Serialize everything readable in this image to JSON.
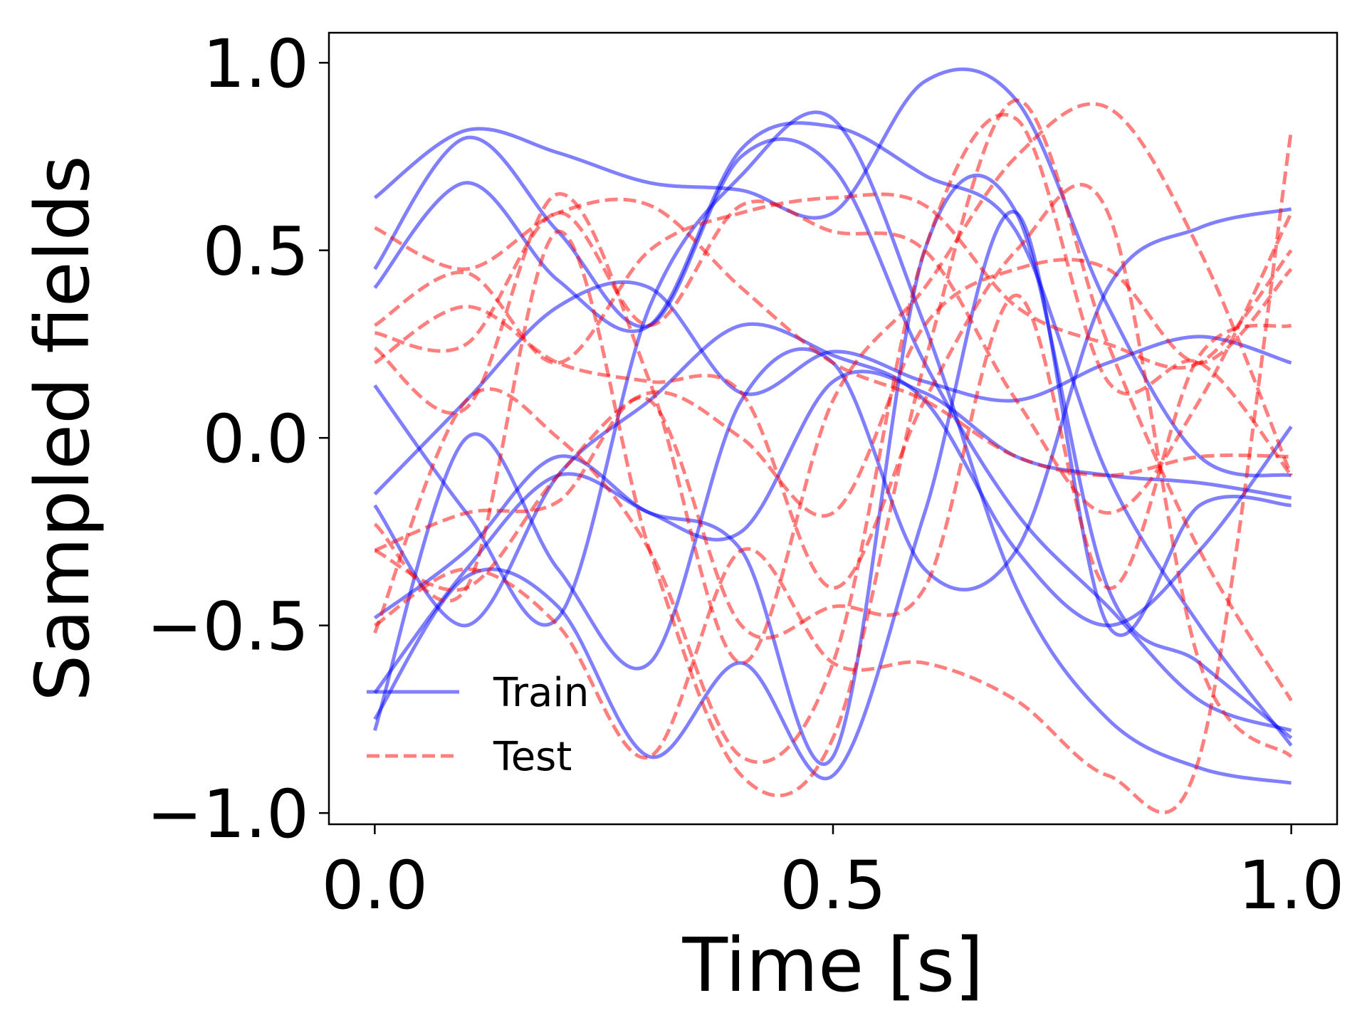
{
  "chart_data": {
    "type": "line",
    "title": "",
    "xlabel": "Time [s]",
    "ylabel": "Sampled fields",
    "xlim": [
      -0.05,
      1.05
    ],
    "ylim": [
      -1.03,
      1.08
    ],
    "x_ticks": [
      {
        "value": 0.0,
        "label": "0.0"
      },
      {
        "value": 0.5,
        "label": "0.5"
      },
      {
        "value": 1.0,
        "label": "1.0"
      }
    ],
    "y_ticks": [
      {
        "value": -1.0,
        "label": "−1.0"
      },
      {
        "value": -0.5,
        "label": "−0.5"
      },
      {
        "value": 0.0,
        "label": "0.0"
      },
      {
        "value": 0.5,
        "label": "0.5"
      },
      {
        "value": 1.0,
        "label": "1.0"
      }
    ],
    "grid": false,
    "legend": {
      "placement": "lower-left",
      "entries": [
        {
          "label": "Train",
          "style": "solid",
          "color": "#0000ff"
        },
        {
          "label": "Test",
          "style": "dashed",
          "color": "#ff0000"
        }
      ]
    },
    "line_opacity": 0.5,
    "x": [
      0.0,
      0.1,
      0.2,
      0.3,
      0.4,
      0.5,
      0.6,
      0.7,
      0.8,
      0.9,
      1.0
    ],
    "series": [
      {
        "group": "Train",
        "values": [
          0.64,
          0.82,
          0.76,
          0.68,
          0.66,
          0.6,
          0.95,
          0.9,
          0.35,
          -0.05,
          -0.1
        ]
      },
      {
        "group": "Train",
        "values": [
          0.45,
          0.8,
          0.55,
          0.3,
          0.75,
          0.72,
          0.2,
          -0.2,
          -0.45,
          -0.7,
          -0.78
        ]
      },
      {
        "group": "Train",
        "values": [
          0.4,
          0.68,
          0.42,
          0.3,
          0.77,
          0.83,
          0.7,
          0.55,
          -0.1,
          -0.5,
          -0.82
        ]
      },
      {
        "group": "Train",
        "values": [
          0.14,
          -0.2,
          -0.48,
          0.35,
          0.7,
          0.85,
          0.3,
          -0.4,
          -0.75,
          -0.88,
          -0.92
        ]
      },
      {
        "group": "Train",
        "values": [
          -0.15,
          0.1,
          0.35,
          0.4,
          0.12,
          0.23,
          0.15,
          0.1,
          0.2,
          0.27,
          0.2
        ]
      },
      {
        "group": "Train",
        "values": [
          -0.48,
          -0.3,
          -0.05,
          -0.2,
          -0.25,
          0.15,
          0.12,
          -0.05,
          -0.1,
          -0.12,
          -0.16
        ]
      },
      {
        "group": "Train",
        "values": [
          -0.18,
          -0.5,
          -0.1,
          0.1,
          0.3,
          0.22,
          0.1,
          -0.3,
          -0.5,
          -0.3,
          0.03
        ]
      },
      {
        "group": "Train",
        "values": [
          -0.68,
          -0.35,
          -0.1,
          -0.2,
          -0.3,
          -0.85,
          0.5,
          0.6,
          -0.4,
          -0.6,
          -0.8
        ]
      },
      {
        "group": "Train",
        "values": [
          -0.75,
          -0.37,
          -0.45,
          -0.85,
          -0.6,
          -0.9,
          -0.2,
          0.6,
          -0.5,
          -0.18,
          -0.18
        ]
      },
      {
        "group": "Train",
        "values": [
          -0.78,
          0.0,
          -0.35,
          -0.6,
          0.1,
          0.2,
          -0.35,
          -0.3,
          0.4,
          0.56,
          0.61
        ]
      },
      {
        "group": "Test",
        "values": [
          0.56,
          0.45,
          0.6,
          0.62,
          0.4,
          0.2,
          0.1,
          -0.05,
          -0.1,
          -0.05,
          -0.05
        ]
      },
      {
        "group": "Test",
        "values": [
          0.3,
          0.44,
          0.2,
          0.5,
          0.6,
          0.64,
          0.62,
          0.35,
          0.25,
          0.2,
          0.5
        ]
      },
      {
        "group": "Test",
        "values": [
          0.28,
          0.25,
          0.6,
          0.3,
          0.62,
          0.55,
          0.5,
          0.1,
          -0.2,
          0.1,
          0.6
        ]
      },
      {
        "group": "Test",
        "values": [
          0.24,
          0.08,
          0.65,
          0.15,
          -0.6,
          0.1,
          0.4,
          0.75,
          0.88,
          0.5,
          -0.1
        ]
      },
      {
        "group": "Test",
        "values": [
          0.2,
          0.35,
          0.2,
          0.15,
          0.12,
          -0.4,
          0.1,
          0.5,
          0.6,
          -0.6,
          -0.85
        ]
      },
      {
        "group": "Test",
        "values": [
          -0.23,
          -0.4,
          0.55,
          -0.3,
          -0.9,
          -0.8,
          0.2,
          0.9,
          0.25,
          -0.3,
          -0.7
        ]
      },
      {
        "group": "Test",
        "values": [
          -0.3,
          -0.2,
          -0.17,
          0.1,
          -0.5,
          -0.45,
          -0.4,
          0.38,
          -0.4,
          0.22,
          0.3
        ]
      },
      {
        "group": "Test",
        "values": [
          -0.5,
          -0.35,
          -0.5,
          -0.85,
          -0.3,
          -0.6,
          -0.6,
          -0.7,
          -0.9,
          -0.85,
          0.82
        ]
      },
      {
        "group": "Test",
        "values": [
          -0.52,
          0.1,
          0.0,
          -0.3,
          -0.85,
          -0.6,
          0.5,
          0.85,
          0.15,
          0.2,
          -0.1
        ]
      },
      {
        "group": "Test",
        "values": [
          -0.3,
          -0.4,
          -0.1,
          0.12,
          0.0,
          -0.2,
          0.3,
          0.45,
          0.45,
          0.2,
          0.45
        ]
      }
    ]
  }
}
